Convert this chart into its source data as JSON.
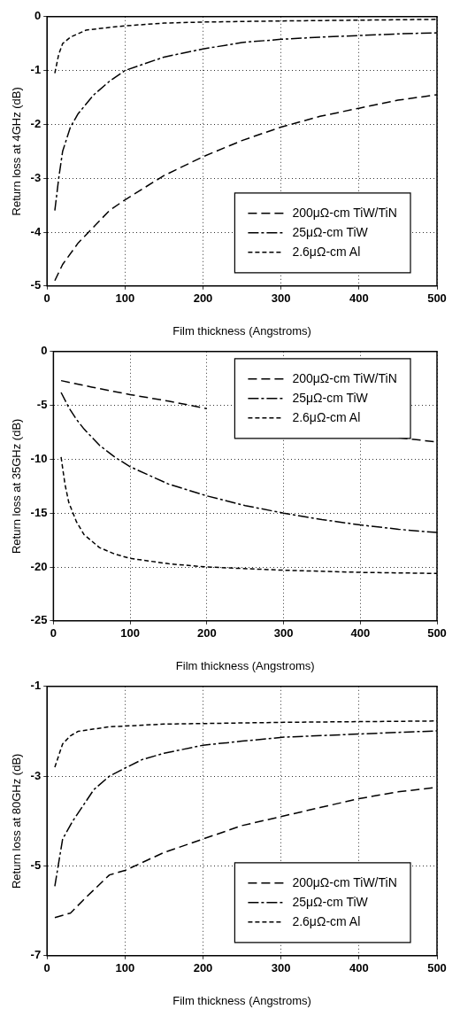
{
  "chart_data": [
    {
      "type": "line",
      "xlabel": "Film thickness (Angstroms)",
      "ylabel": "Return loss at 4GHz (dB)",
      "xlim": [
        0,
        500
      ],
      "xticks": [
        0,
        100,
        200,
        300,
        400,
        500
      ],
      "ylim": [
        -5,
        0
      ],
      "yticks": [
        -5,
        -4,
        -3,
        -2,
        -1,
        0
      ],
      "grid": true,
      "legend": "bottom right",
      "line_style": "dashed",
      "marker": "none",
      "series": [
        {
          "name": "200μΩ-cm TiW/TiN",
          "color": "#000000",
          "x": [
            10,
            20,
            40,
            60,
            80,
            100,
            150,
            200,
            250,
            300,
            350,
            400,
            450,
            500
          ],
          "values": [
            -4.9,
            -4.6,
            -4.2,
            -3.9,
            -3.6,
            -3.4,
            -2.95,
            -2.6,
            -2.3,
            -2.05,
            -1.85,
            -1.7,
            -1.55,
            -1.45
          ]
        },
        {
          "name": "25μΩ-cm TiW",
          "color": "#000000",
          "x": [
            10,
            15,
            20,
            30,
            40,
            60,
            80,
            100,
            150,
            200,
            250,
            300,
            350,
            400,
            450,
            500
          ],
          "values": [
            -3.6,
            -3.0,
            -2.5,
            -2.05,
            -1.8,
            -1.45,
            -1.2,
            -1.0,
            -0.75,
            -0.6,
            -0.48,
            -0.42,
            -0.38,
            -0.35,
            -0.32,
            -0.3
          ]
        },
        {
          "name": "2.6μΩ-cm Al",
          "color": "#000000",
          "x": [
            10,
            15,
            20,
            30,
            50,
            80,
            100,
            150,
            200,
            300,
            500
          ],
          "values": [
            -1.05,
            -0.7,
            -0.5,
            -0.38,
            -0.25,
            -0.2,
            -0.17,
            -0.12,
            -0.1,
            -0.08,
            -0.05
          ]
        }
      ]
    },
    {
      "type": "line",
      "xlabel": "Film thickness (Angstroms)",
      "ylabel": "Return loss at 35GHz (dB)",
      "xlim": [
        0,
        500
      ],
      "xticks": [
        0,
        100,
        200,
        300,
        400,
        500
      ],
      "ylim": [
        -25,
        0
      ],
      "yticks": [
        -25,
        -20,
        -15,
        -10,
        -5,
        0
      ],
      "grid": true,
      "legend": "top right",
      "line_style": "dashed",
      "marker": "none",
      "series": [
        {
          "name": "200μΩ-cm TiW/TiN",
          "color": "#000000",
          "x": [
            10,
            50,
            100,
            150,
            200,
            250,
            300,
            350,
            400,
            450,
            500
          ],
          "values": [
            -2.7,
            -3.3,
            -4.0,
            -4.6,
            -5.3,
            null,
            null,
            null,
            null,
            -8.0,
            -8.4
          ]
        },
        {
          "name": "25μΩ-cm TiW",
          "color": "#000000",
          "x": [
            10,
            20,
            30,
            40,
            60,
            80,
            100,
            150,
            200,
            250,
            300,
            350,
            400,
            450,
            500
          ],
          "values": [
            -3.8,
            -5.2,
            -6.3,
            -7.2,
            -8.7,
            -9.8,
            -10.7,
            -12.3,
            -13.4,
            -14.3,
            -15.0,
            -15.6,
            -16.1,
            -16.5,
            -16.8
          ]
        },
        {
          "name": "2.6μΩ-cm Al",
          "color": "#000000",
          "x": [
            10,
            15,
            20,
            30,
            40,
            60,
            80,
            100,
            150,
            200,
            300,
            400,
            500
          ],
          "values": [
            -9.8,
            -12.3,
            -14.0,
            -15.8,
            -17.0,
            -18.2,
            -18.8,
            -19.2,
            -19.7,
            -20.0,
            -20.3,
            -20.5,
            -20.6
          ]
        }
      ]
    },
    {
      "type": "line",
      "xlabel": "Film thickness (Angstroms)",
      "ylabel": "Return loss at 80GHz (dB)",
      "xlim": [
        0,
        500
      ],
      "xticks": [
        0,
        100,
        200,
        300,
        400,
        500
      ],
      "ylim": [
        -7,
        -1
      ],
      "yticks": [
        -7,
        -5,
        -3,
        -1
      ],
      "grid": true,
      "legend": "bottom right",
      "line_style": "dashed",
      "marker": "none",
      "series": [
        {
          "name": "200μΩ-cm TiW/TiN",
          "color": "#000000",
          "x": [
            10,
            30,
            50,
            80,
            100,
            150,
            200,
            250,
            300,
            350,
            400,
            450,
            500
          ],
          "values": [
            -6.15,
            -6.05,
            -5.7,
            -5.2,
            -5.1,
            -4.7,
            -4.4,
            -4.1,
            -3.9,
            -3.7,
            -3.5,
            -3.35,
            -3.25
          ]
        },
        {
          "name": "25μΩ-cm TiW",
          "color": "#000000",
          "x": [
            10,
            20,
            33,
            60,
            80,
            100,
            122,
            150,
            200,
            250,
            304,
            401,
            500
          ],
          "values": [
            -5.45,
            -4.4,
            -4.0,
            -3.3,
            -3.0,
            -2.82,
            -2.63,
            -2.49,
            -2.31,
            -2.22,
            -2.13,
            -2.06,
            -1.99
          ]
        },
        {
          "name": "2.6μΩ-cm Al",
          "color": "#000000",
          "x": [
            10,
            20,
            30,
            40,
            80,
            150,
            304,
            500
          ],
          "values": [
            -2.8,
            -2.28,
            -2.1,
            -2.0,
            -1.9,
            -1.84,
            -1.8,
            -1.77
          ]
        }
      ]
    }
  ]
}
